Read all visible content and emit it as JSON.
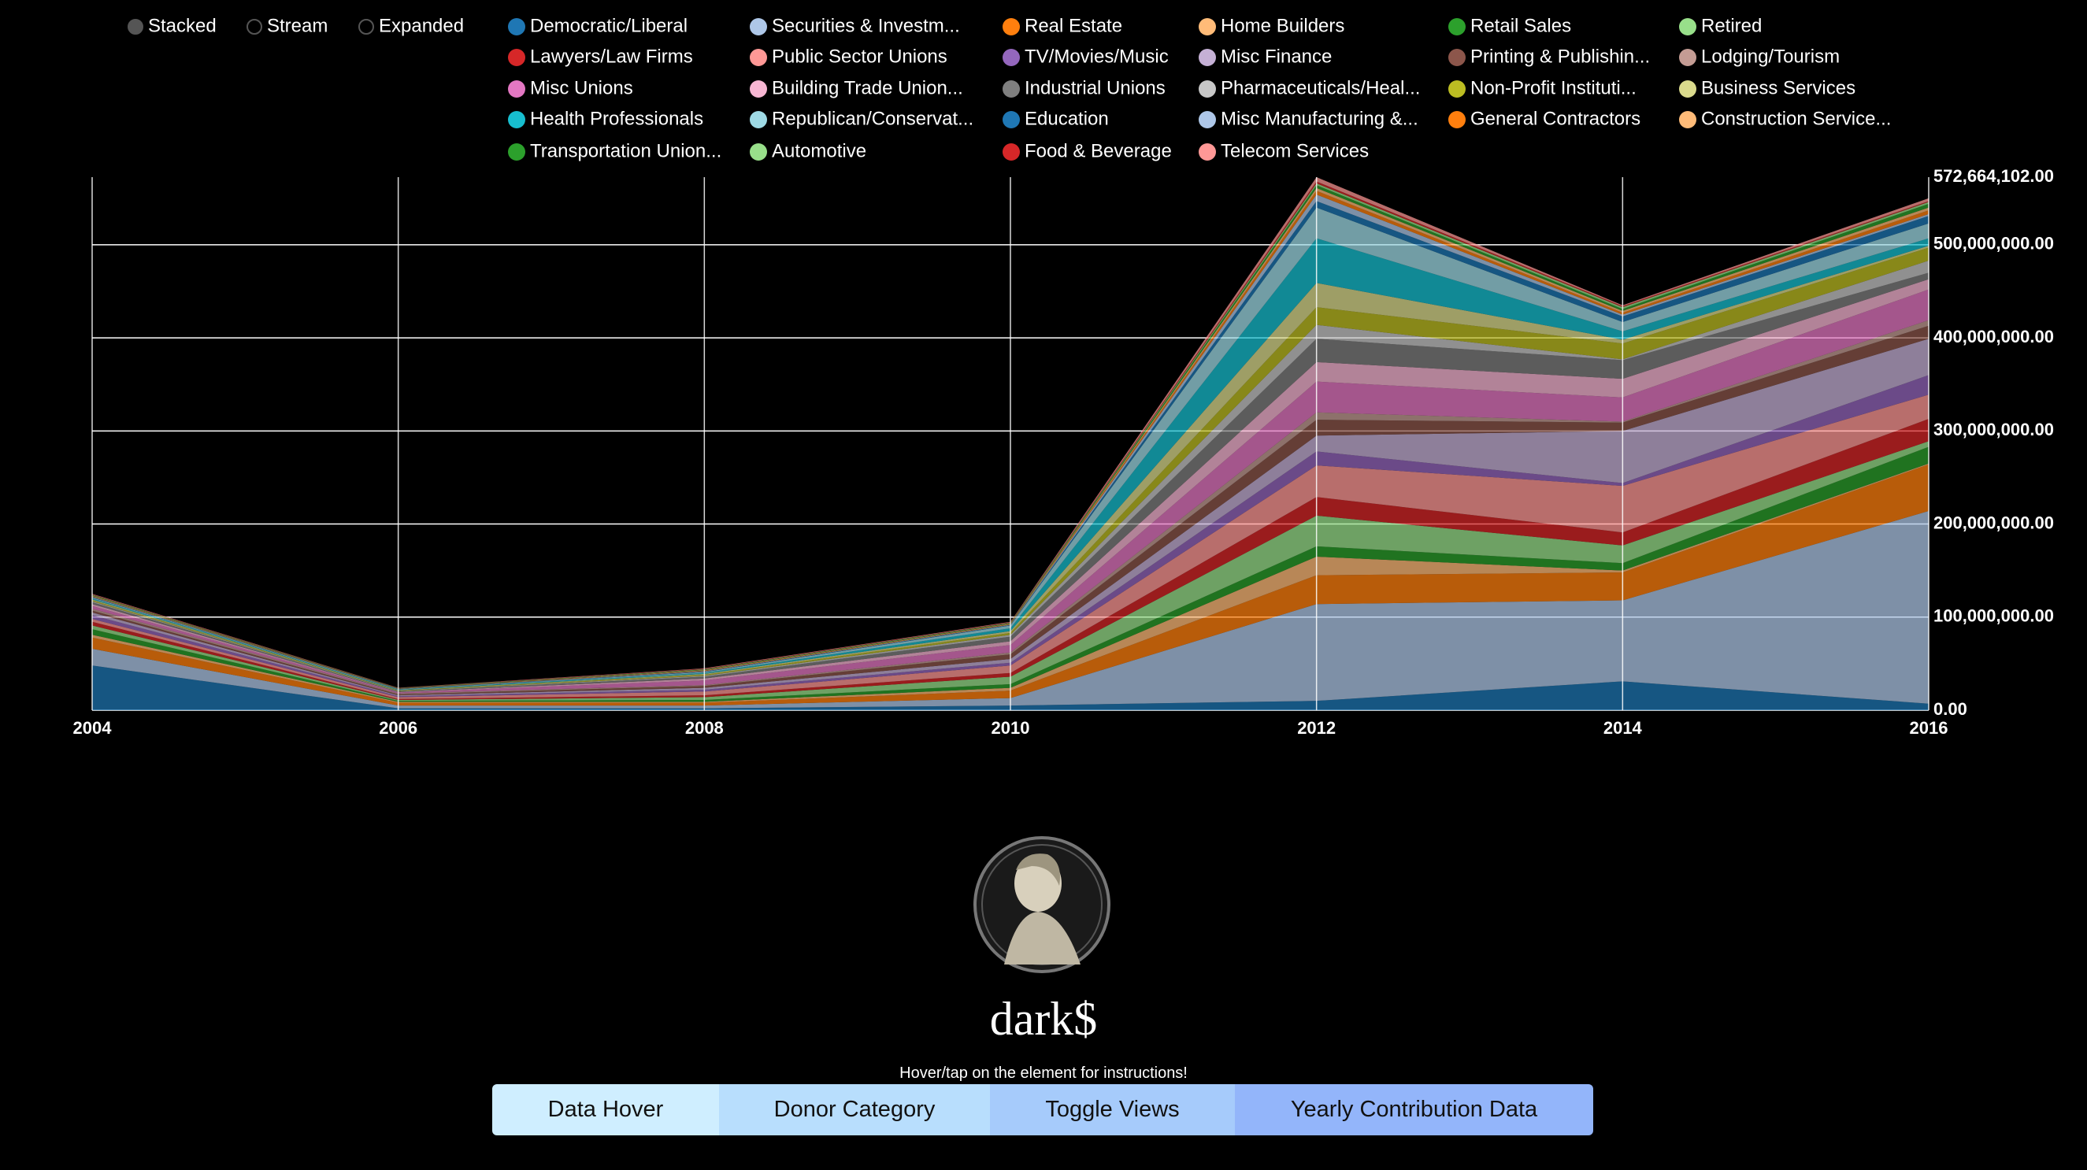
{
  "chart_data": {
    "type": "area",
    "stacked": true,
    "x": [
      2004,
      2006,
      2008,
      2010,
      2012,
      2014,
      2016
    ],
    "xlim": [
      2004,
      2016
    ],
    "xticks": [
      2004,
      2006,
      2008,
      2010,
      2012,
      2014,
      2016
    ],
    "ylim": [
      0,
      572664102
    ],
    "yticks": [
      {
        "value": 0,
        "label": "0.00"
      },
      {
        "value": 100000000,
        "label": "100,000,000.00"
      },
      {
        "value": 200000000,
        "label": "200,000,000.00"
      },
      {
        "value": 300000000,
        "label": "300,000,000.00"
      },
      {
        "value": 400000000,
        "label": "400,000,000.00"
      },
      {
        "value": 500000000,
        "label": "500,000,000.00"
      },
      {
        "value": 572664102,
        "label": "572,664,102.00"
      }
    ],
    "grid": true,
    "modes": [
      "Stacked",
      "Stream",
      "Expanded"
    ],
    "series": [
      {
        "name": "Democratic/Liberal",
        "color": "#1f77b4",
        "values": [
          48000000,
          2000000,
          2000000,
          5000000,
          10000000,
          31000000,
          7000000
        ]
      },
      {
        "name": "Securities & Investm...",
        "color": "#aec7e8",
        "values": [
          18000000,
          3000000,
          3000000,
          8000000,
          104000000,
          87000000,
          207000000
        ]
      },
      {
        "name": "Real Estate",
        "color": "#ff7f0e",
        "values": [
          12000000,
          3000000,
          3000000,
          8000000,
          31000000,
          30000000,
          50000000
        ]
      },
      {
        "name": "Home Builders",
        "color": "#ffbb78",
        "values": [
          3000000,
          1000000,
          1000000,
          3000000,
          20000000,
          2000000,
          1000000
        ]
      },
      {
        "name": "Retail Sales",
        "color": "#2ca02c",
        "values": [
          6000000,
          1000000,
          2000000,
          4000000,
          11000000,
          8000000,
          18000000
        ]
      },
      {
        "name": "Retired",
        "color": "#98df8a",
        "values": [
          4000000,
          1000000,
          3000000,
          8000000,
          33000000,
          19000000,
          6000000
        ]
      },
      {
        "name": "Lawyers/Law Firms",
        "color": "#d62728",
        "values": [
          4000000,
          1000000,
          2000000,
          4000000,
          20000000,
          14000000,
          24000000
        ]
      },
      {
        "name": "Public Sector Unions",
        "color": "#ff9896",
        "values": [
          3000000,
          2000000,
          4000000,
          8000000,
          34000000,
          50000000,
          26000000
        ]
      },
      {
        "name": "TV/Movies/Music",
        "color": "#9467bd",
        "values": [
          4000000,
          1000000,
          2000000,
          3000000,
          15000000,
          3000000,
          21000000
        ]
      },
      {
        "name": "Misc Finance",
        "color": "#c5b0d5",
        "values": [
          3000000,
          1000000,
          2000000,
          4000000,
          17000000,
          56000000,
          39000000
        ]
      },
      {
        "name": "Printing & Publishin...",
        "color": "#8c564b",
        "values": [
          2000000,
          1000000,
          2000000,
          5000000,
          17000000,
          9000000,
          14000000
        ]
      },
      {
        "name": "Lodging/Tourism",
        "color": "#c49c94",
        "values": [
          2000000,
          1000000,
          1000000,
          2000000,
          8000000,
          1000000,
          6000000
        ]
      },
      {
        "name": "Misc Unions",
        "color": "#e377c2",
        "values": [
          3000000,
          1000000,
          5000000,
          8000000,
          33000000,
          26000000,
          33000000
        ]
      },
      {
        "name": "Building Trade Union...",
        "color": "#f7b6d2",
        "values": [
          2000000,
          500000,
          2000000,
          4000000,
          21000000,
          20000000,
          11000000
        ]
      },
      {
        "name": "Industrial Unions",
        "color": "#7f7f7f",
        "values": [
          2000000,
          500000,
          2000000,
          5000000,
          25000000,
          20000000,
          7000000
        ]
      },
      {
        "name": "Pharmaceuticals/Heal...",
        "color": "#c7c7c7",
        "values": [
          1000000,
          500000,
          1000000,
          2000000,
          15000000,
          1000000,
          13000000
        ]
      },
      {
        "name": "Non-Profit Instituti...",
        "color": "#bcbd22",
        "values": [
          1000000,
          500000,
          1000000,
          2000000,
          19000000,
          17000000,
          14000000
        ]
      },
      {
        "name": "Business Services",
        "color": "#dbdb8d",
        "values": [
          1000000,
          500000,
          1000000,
          2000000,
          26000000,
          4000000,
          2000000
        ]
      },
      {
        "name": "Health Professionals",
        "color": "#17becf",
        "values": [
          1000000,
          500000,
          1000000,
          3000000,
          48000000,
          9000000,
          8000000
        ]
      },
      {
        "name": "Republican/Conservat...",
        "color": "#9edae5",
        "values": [
          1000000,
          500000,
          1000000,
          3000000,
          33000000,
          10000000,
          16000000
        ]
      },
      {
        "name": "Education",
        "color": "#1f77b4",
        "values": [
          500000,
          200000,
          500000,
          500000,
          7000000,
          6000000,
          8000000
        ]
      },
      {
        "name": "Misc Manufacturing &...",
        "color": "#aec7e8",
        "values": [
          500000,
          200000,
          500000,
          500000,
          7000000,
          2000000,
          2000000
        ]
      },
      {
        "name": "General Contractors",
        "color": "#ff7f0e",
        "values": [
          500000,
          200000,
          500000,
          500000,
          4000000,
          2000000,
          4000000
        ]
      },
      {
        "name": "Construction Service...",
        "color": "#ffbb78",
        "values": [
          500000,
          200000,
          500000,
          500000,
          3000000,
          2000000,
          3000000
        ]
      },
      {
        "name": "Transportation Union...",
        "color": "#2ca02c",
        "values": [
          500000,
          200000,
          500000,
          500000,
          3000000,
          2000000,
          4000000
        ]
      },
      {
        "name": "Automotive",
        "color": "#98df8a",
        "values": [
          500000,
          200000,
          500000,
          500000,
          2000000,
          2000000,
          2000000
        ]
      },
      {
        "name": "Food & Beverage",
        "color": "#d62728",
        "values": [
          500000,
          200000,
          500000,
          500000,
          2000000,
          1000000,
          1000000
        ]
      },
      {
        "name": "Telecom Services",
        "color": "#ff9896",
        "values": [
          500000,
          200000,
          500000,
          500000,
          4664102,
          1000000,
          3000000
        ]
      }
    ]
  },
  "page": {
    "title": "dark$",
    "instruction": "Hover/tap on the element for instructions!",
    "buttons": [
      "Data Hover",
      "Donor Category",
      "Toggle Views",
      "Yearly Contribution Data"
    ]
  }
}
